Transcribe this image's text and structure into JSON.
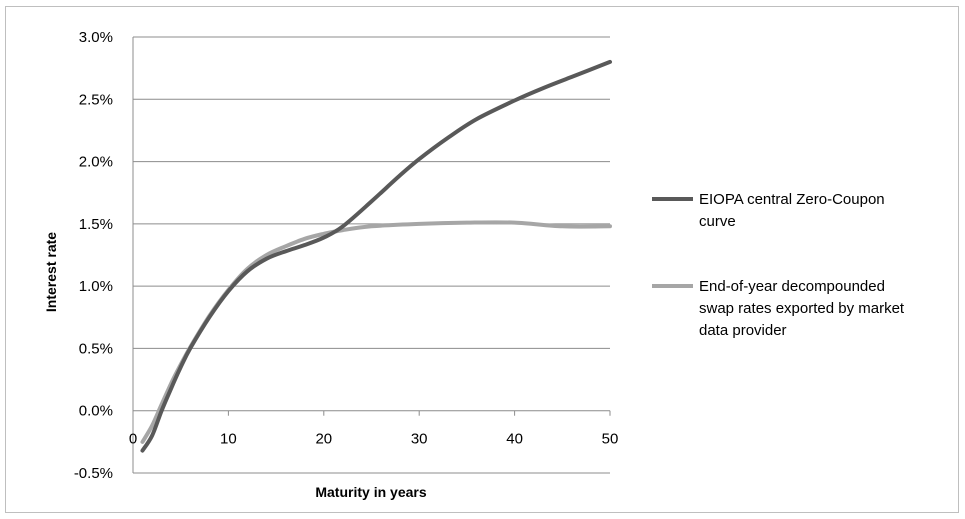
{
  "chart_data": {
    "type": "line",
    "title": "",
    "xlabel": "Maturity in years",
    "ylabel": "Interest rate",
    "xlim": [
      0,
      50
    ],
    "ylim": [
      -0.5,
      3.0
    ],
    "x_ticks": [
      0,
      10,
      20,
      30,
      40,
      50
    ],
    "x_tick_labels": [
      "0",
      "10",
      "20",
      "30",
      "40",
      "50"
    ],
    "y_ticks": [
      3.0,
      2.5,
      2.0,
      1.5,
      1.0,
      0.5,
      0.0,
      -0.5
    ],
    "y_tick_labels": [
      "3.0%",
      "2.5%",
      "2.0%",
      "1.5%",
      "1.0%",
      "0.5%",
      "0.0%",
      "-0.5%"
    ],
    "grid": "horizontal",
    "legend_position": "right",
    "series": [
      {
        "name": "EIOPA central Zero-Coupon curve",
        "color": "#595959",
        "legend_lines": [
          "EIOPA central Zero-Coupon",
          "curve"
        ],
        "x": [
          1,
          2,
          3,
          4,
          5,
          6,
          8,
          10,
          12,
          14,
          16,
          18,
          20,
          22,
          25,
          28,
          30,
          33,
          36,
          40,
          43,
          46,
          50
        ],
        "y": [
          -0.32,
          -0.2,
          0.0,
          0.18,
          0.35,
          0.5,
          0.75,
          0.96,
          1.12,
          1.22,
          1.28,
          1.33,
          1.39,
          1.48,
          1.68,
          1.89,
          2.02,
          2.19,
          2.34,
          2.49,
          2.59,
          2.68,
          2.8
        ]
      },
      {
        "name": "End-of-year decompounded swap rates exported by market data provider",
        "color": "#a6a6a6",
        "legend_lines": [
          "End-of-year decompounded",
          "swap rates exported by market",
          "data provider"
        ],
        "x": [
          1,
          2,
          3,
          4,
          5,
          6,
          8,
          10,
          12,
          14,
          16,
          18,
          20,
          22,
          25,
          30,
          35,
          40,
          45,
          50
        ],
        "y": [
          -0.25,
          -0.12,
          0.05,
          0.22,
          0.37,
          0.51,
          0.76,
          0.97,
          1.14,
          1.25,
          1.32,
          1.38,
          1.42,
          1.45,
          1.48,
          1.5,
          1.51,
          1.51,
          1.48,
          1.48
        ]
      }
    ]
  }
}
